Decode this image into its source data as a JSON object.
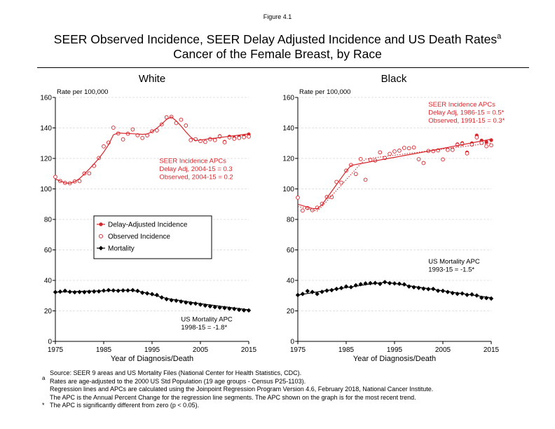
{
  "figure_label": "Figure 4.1",
  "title_line1": "SEER Observed Incidence, SEER Delay Adjusted Incidence and US Death Rates",
  "title_superscript": "a",
  "title_line2": "Cancer of the Female Breast, by Race",
  "colors": {
    "incidence": "#d7262b",
    "mortality": "#000000",
    "axis": "#000000",
    "grid": "#d9d9d9"
  },
  "legend": {
    "items": [
      {
        "label": "Delay-Adjusted Incidence",
        "icon": "filled-circle-line"
      },
      {
        "label": "Observed Incidence",
        "icon": "open-circle"
      },
      {
        "label": "Mortality",
        "icon": "diamond-line"
      }
    ]
  },
  "footnotes": {
    "source": "Source: SEER 9 areas and US Mortality Files (National Center for Health Statistics, CDC).",
    "a_marker": "a",
    "a_line1": "Rates are age-adjusted to the 2000 US Std Population (19 age groups - Census P25-1103).",
    "a_line2": "Regression lines and APCs are calculated using the Joinpoint Regression Program Version 4.6, February 2018, National Cancer Institute.",
    "a_line3": "The APC is the Annual Percent Change for the regression line segments. The APC shown on the graph is for the most recent trend.",
    "star_marker": "*",
    "star_line": "The APC is significantly different from zero (p < 0.05)."
  },
  "chart_data": [
    {
      "type": "line",
      "title": "White",
      "xlabel": "Year of Diagnosis/Death",
      "ylabel": "Rate per 100,000",
      "xlim": [
        1975,
        2015
      ],
      "ylim": [
        0,
        160
      ],
      "x_ticks": [
        "1975",
        "1985",
        "1995",
        "2005",
        "2015"
      ],
      "y_ticks": [
        "0",
        "20",
        "40",
        "60",
        "80",
        "100",
        "120",
        "140",
        "160"
      ],
      "grid": "horizontal dashed",
      "legend_position": "left middle",
      "annotations": [
        {
          "lines": [
            "SEER Incidence APCs",
            "Delay Adj, 2004-15 = 0.3",
            "Observed, 2004-15 = 0.2"
          ],
          "color": "incidence",
          "x": 1996.5,
          "y": 117
        },
        {
          "lines": [
            "US Mortality APC",
            "1998-15 = -1.8*"
          ],
          "color": "mortality",
          "x": 2001,
          "y": 13
        }
      ],
      "x": [
        1975,
        1976,
        1977,
        1978,
        1979,
        1980,
        1981,
        1982,
        1983,
        1984,
        1985,
        1986,
        1987,
        1988,
        1989,
        1990,
        1991,
        1992,
        1993,
        1994,
        1995,
        1996,
        1997,
        1998,
        1999,
        2000,
        2001,
        2002,
        2003,
        2004,
        2005,
        2006,
        2007,
        2008,
        2009,
        2010,
        2011,
        2012,
        2013,
        2014,
        2015
      ],
      "series": [
        {
          "name": "Delay-Adjusted Incidence",
          "style": "filled-circle",
          "values": [
            107.9,
            105.2,
            104.0,
            103.7,
            104.9,
            105.1,
            110.1,
            110.2,
            115.1,
            120.3,
            127.9,
            130.4,
            140.2,
            136.4,
            132.5,
            136.2,
            139.0,
            135.2,
            133.4,
            135.1,
            137.8,
            138.4,
            142.3,
            147.0,
            147.3,
            143.2,
            145.4,
            141.6,
            132.0,
            132.6,
            131.4,
            131.0,
            132.8,
            132.3,
            134.7,
            131.0,
            134.3,
            133.5,
            134.2,
            134.8,
            135.8
          ]
        },
        {
          "name": "Observed Incidence",
          "style": "open-circle",
          "values": [
            107.9,
            105.2,
            104.0,
            103.7,
            104.9,
            105.1,
            110.1,
            110.2,
            115.1,
            120.3,
            127.9,
            130.4,
            140.2,
            136.4,
            132.5,
            136.2,
            139.0,
            135.2,
            133.4,
            135.1,
            137.8,
            138.4,
            142.3,
            147.0,
            147.3,
            143.2,
            145.4,
            141.6,
            132.0,
            132.6,
            131.4,
            130.8,
            132.6,
            132.0,
            134.4,
            130.6,
            133.8,
            132.9,
            133.4,
            133.9,
            134.3
          ]
        },
        {
          "name": "Delay-Adjusted Incidence trend",
          "style": "line",
          "values": [
            106.5,
            105.2,
            104.0,
            103.7,
            104.8,
            106.8,
            109.8,
            113.0,
            116.4,
            120.0,
            124.2,
            129.0,
            135.5,
            136.7,
            136.5,
            136.4,
            136.2,
            136.0,
            135.8,
            136.0,
            137.5,
            139.9,
            142.5,
            145.6,
            147.2,
            144.6,
            141.2,
            137.4,
            134.0,
            131.7,
            132.1,
            132.5,
            132.9,
            133.3,
            133.7,
            134.1,
            134.5,
            134.9,
            135.3,
            135.7,
            136.1
          ]
        },
        {
          "name": "Mortality",
          "style": "diamond",
          "values": [
            32.3,
            32.6,
            33.2,
            32.5,
            32.2,
            32.4,
            32.3,
            32.5,
            32.7,
            32.8,
            33.3,
            33.6,
            33.4,
            33.2,
            33.4,
            33.4,
            33.6,
            33.1,
            31.9,
            31.5,
            31.0,
            30.4,
            28.8,
            27.7,
            27.0,
            26.7,
            26.1,
            25.5,
            25.0,
            24.8,
            24.1,
            23.5,
            23.0,
            22.5,
            22.2,
            21.9,
            21.5,
            21.3,
            20.7,
            20.4,
            20.3
          ]
        },
        {
          "name": "Mortality trend",
          "style": "line",
          "values": [
            32.3,
            32.4,
            32.5,
            32.6,
            32.7,
            32.8,
            32.9,
            33.0,
            33.0,
            33.1,
            33.2,
            33.3,
            33.4,
            33.4,
            33.5,
            33.5,
            33.3,
            32.9,
            32.4,
            31.6,
            30.7,
            29.9,
            29.0,
            28.2,
            27.7,
            27.2,
            26.7,
            26.2,
            25.7,
            25.2,
            24.8,
            24.3,
            23.9,
            23.5,
            23.1,
            22.7,
            22.3,
            21.9,
            21.5,
            21.1,
            20.7
          ]
        }
      ]
    },
    {
      "type": "line",
      "title": "Black",
      "xlabel": "Year of Diagnosis/Death",
      "ylabel": "Rate per 100,000",
      "xlim": [
        1975,
        2015
      ],
      "ylim": [
        0,
        160
      ],
      "x_ticks": [
        "1975",
        "1985",
        "1995",
        "2005",
        "2015"
      ],
      "y_ticks": [
        "0",
        "20",
        "40",
        "60",
        "80",
        "100",
        "120",
        "140",
        "160"
      ],
      "grid": "horizontal dashed",
      "annotations": [
        {
          "lines": [
            "SEER Incidence APCs",
            "Delay Adj, 1986-15 = 0.5*",
            "Observed, 1991-15 = 0.3*"
          ],
          "color": "incidence",
          "x": 2002,
          "y": 154
        },
        {
          "lines": [
            "US Mortality APC",
            "1993-15 = -1.5*"
          ],
          "color": "mortality",
          "x": 2002,
          "y": 51
        }
      ],
      "x": [
        1975,
        1976,
        1977,
        1978,
        1979,
        1980,
        1981,
        1982,
        1983,
        1984,
        1985,
        1986,
        1987,
        1988,
        1989,
        1990,
        1991,
        1992,
        1993,
        1994,
        1995,
        1996,
        1997,
        1998,
        1999,
        2000,
        2001,
        2002,
        2003,
        2004,
        2005,
        2006,
        2007,
        2008,
        2009,
        2010,
        2011,
        2012,
        2013,
        2014,
        2015
      ],
      "series": [
        {
          "name": "Delay-Adjusted Incidence",
          "style": "filled-circle",
          "values": [
            94.3,
            85.8,
            87.5,
            86.1,
            87.7,
            90.3,
            94.7,
            94.6,
            104.6,
            104.1,
            112.0,
            115.7,
            109.8,
            119.6,
            106.0,
            119.1,
            118.6,
            124.0,
            120.3,
            123.0,
            124.6,
            125.1,
            126.9,
            126.7,
            127.2,
            119.5,
            117.0,
            124.9,
            124.8,
            125.3,
            119.3,
            125.8,
            125.9,
            129.3,
            130.1,
            124.0,
            130.0,
            135.1,
            131.8,
            130.8,
            132.0
          ]
        },
        {
          "name": "Observed Incidence",
          "style": "open-circle",
          "values": [
            94.3,
            85.8,
            87.5,
            86.1,
            87.7,
            90.3,
            94.7,
            94.6,
            104.6,
            104.1,
            112.0,
            115.7,
            109.8,
            119.6,
            106.0,
            119.1,
            118.6,
            124.0,
            120.3,
            123.0,
            124.6,
            125.1,
            126.9,
            126.7,
            127.2,
            119.5,
            117.0,
            124.9,
            124.8,
            125.3,
            119.3,
            125.6,
            125.6,
            128.9,
            129.5,
            123.3,
            129.1,
            133.8,
            130.2,
            128.0,
            128.6
          ]
        },
        {
          "name": "Delay-Adjusted Incidence trend",
          "style": "line",
          "values": [
            90.0,
            89.0,
            88.0,
            87.2,
            87.0,
            89.6,
            94.0,
            98.4,
            102.8,
            107.2,
            111.6,
            115.4,
            116.0,
            116.6,
            117.2,
            117.8,
            118.4,
            119.0,
            119.6,
            120.2,
            120.7,
            121.3,
            121.9,
            122.5,
            123.0,
            123.6,
            124.2,
            124.8,
            125.4,
            126.0,
            126.6,
            127.2,
            127.8,
            128.4,
            129.0,
            129.6,
            130.2,
            130.8,
            131.4,
            132.0,
            132.7
          ]
        },
        {
          "name": "Observed Incidence trend",
          "style": "dotted",
          "values": [
            88.5,
            87.8,
            87.0,
            86.2,
            85.5,
            88.5,
            92.0,
            95.5,
            99.0,
            102.5,
            106.0,
            109.5,
            113.0,
            116.5,
            119.5,
            120.0,
            120.5,
            120.9,
            121.3,
            121.7,
            122.1,
            122.5,
            122.9,
            123.3,
            123.7,
            124.1,
            124.5,
            124.9,
            125.3,
            125.7,
            126.1,
            126.5,
            126.9,
            127.3,
            127.7,
            128.1,
            128.5,
            128.9,
            129.3,
            129.7,
            130.1
          ]
        },
        {
          "name": "Mortality",
          "style": "diamond",
          "values": [
            30.4,
            31.1,
            33.0,
            32.4,
            31.1,
            32.5,
            33.3,
            33.6,
            34.4,
            35.0,
            36.0,
            35.6,
            36.8,
            37.5,
            38.0,
            38.2,
            38.3,
            37.7,
            38.9,
            38.2,
            38.0,
            37.8,
            37.4,
            36.0,
            35.5,
            35.1,
            34.6,
            34.3,
            34.4,
            33.2,
            33.1,
            32.4,
            31.7,
            31.2,
            31.4,
            30.5,
            30.8,
            30.1,
            28.6,
            28.4,
            28.1
          ]
        },
        {
          "name": "Mortality trend",
          "style": "line",
          "values": [
            30.4,
            30.9,
            31.4,
            31.9,
            32.4,
            32.9,
            33.4,
            33.9,
            34.3,
            34.8,
            35.3,
            35.7,
            36.2,
            36.7,
            37.2,
            37.6,
            38.0,
            38.4,
            38.7,
            38.4,
            38.0,
            37.5,
            37.0,
            36.5,
            36.0,
            35.6,
            35.1,
            34.6,
            34.1,
            33.6,
            33.2,
            32.7,
            32.2,
            31.8,
            31.3,
            30.9,
            30.4,
            30.0,
            29.5,
            29.1,
            28.6
          ]
        }
      ]
    }
  ]
}
